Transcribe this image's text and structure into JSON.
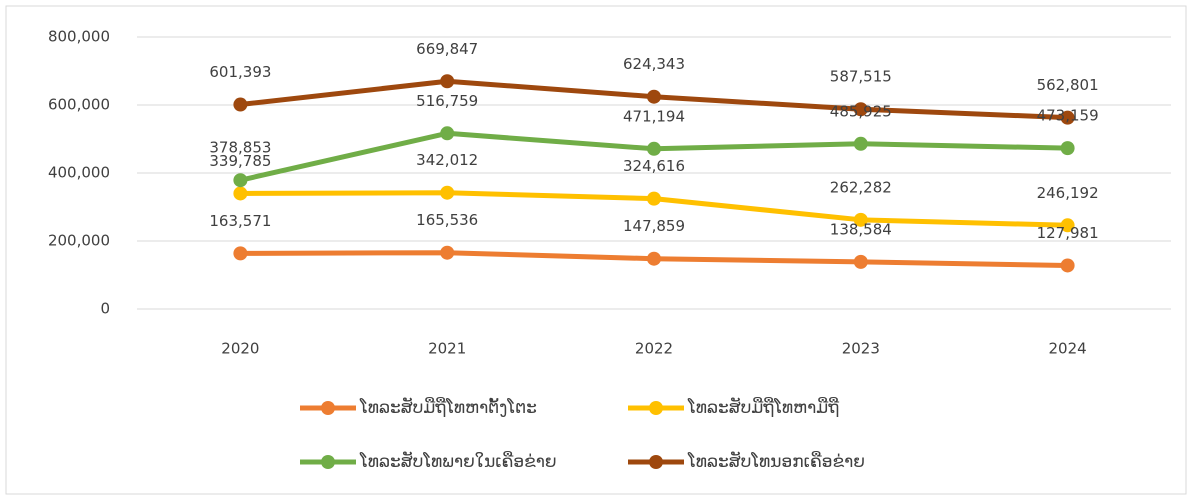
{
  "chart_data": {
    "type": "line",
    "categories": [
      "2020",
      "2021",
      "2022",
      "2023",
      "2024"
    ],
    "series": [
      {
        "name": "ໂທລະສັບມືຖືໂທຫາຕັ້ງໂຕະ",
        "color": "#ED7D31",
        "values": [
          163571,
          165536,
          147859,
          138584,
          127981
        ],
        "value_labels": [
          "163,571",
          "165,536",
          "147,859",
          "138,584",
          "127,981"
        ]
      },
      {
        "name": "ໂທລະສັບມືຖືໂທຫາມືຖື",
        "color": "#FFC000",
        "values": [
          339785,
          342012,
          324616,
          262282,
          246192
        ],
        "value_labels": [
          "339,785",
          "342,012",
          "324,616",
          "262,282",
          "246,192"
        ]
      },
      {
        "name": "ໂທລະສັບໂທພາຍໃນເຄືອຂ່າຍ",
        "color": "#70AD47",
        "values": [
          378853,
          516759,
          471194,
          485925,
          473159
        ],
        "value_labels": [
          "378,853",
          "516,759",
          "471,194",
          "485,925",
          "473,159"
        ]
      },
      {
        "name": "ໂທລະສັບໂທນອກເຄືອຂ່າຍ",
        "color": "#9E480E",
        "values": [
          601393,
          669847,
          624343,
          587515,
          562801
        ],
        "value_labels": [
          "601,393",
          "669,847",
          "624,343",
          "587,515",
          "562,801"
        ]
      }
    ],
    "ylim": [
      0,
      800000
    ],
    "yticks": [
      0,
      {
        "value": 200000,
        "label": "200,000"
      },
      {
        "value": 400000,
        "label": "400,000"
      },
      {
        "value": 600000,
        "label": "600,000"
      },
      {
        "value": 800000,
        "label": "800,000"
      }
    ],
    "grid": true,
    "legend": "bottom"
  }
}
